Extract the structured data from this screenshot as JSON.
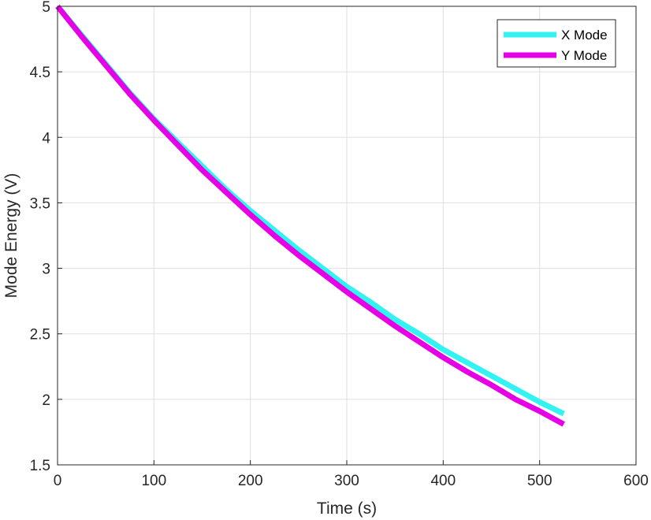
{
  "chart_data": {
    "type": "line",
    "title": "",
    "xlabel": "Time (s)",
    "ylabel": "Mode Energy (V)",
    "xlim": [
      0,
      600
    ],
    "ylim": [
      1.5,
      5
    ],
    "xticks": [
      0,
      100,
      200,
      300,
      400,
      500,
      600
    ],
    "yticks": [
      1.5,
      2,
      2.5,
      3,
      3.5,
      4,
      4.5,
      5
    ],
    "xtick_labels": [
      "0",
      "100",
      "200",
      "300",
      "400",
      "500",
      "600"
    ],
    "ytick_labels": [
      "1.5",
      "2",
      "2.5",
      "3",
      "3.5",
      "4",
      "4.5",
      "5"
    ],
    "grid": true,
    "legend_position": "top-right",
    "series": [
      {
        "name": "X Mode",
        "color": "#33F2F2",
        "x": [
          0,
          25,
          50,
          75,
          100,
          125,
          150,
          175,
          200,
          225,
          250,
          275,
          300,
          325,
          350,
          375,
          400,
          425,
          450,
          475,
          500,
          525
        ],
        "y": [
          5.0,
          4.78,
          4.56,
          4.34,
          4.14,
          3.96,
          3.78,
          3.6,
          3.44,
          3.29,
          3.14,
          3.0,
          2.86,
          2.74,
          2.61,
          2.5,
          2.38,
          2.28,
          2.18,
          2.08,
          1.98,
          1.89
        ]
      },
      {
        "name": "Y Mode",
        "color": "#E600E6",
        "x": [
          0,
          25,
          50,
          75,
          100,
          125,
          150,
          175,
          200,
          225,
          250,
          275,
          300,
          325,
          350,
          375,
          400,
          425,
          450,
          475,
          500,
          525
        ],
        "y": [
          5.0,
          4.77,
          4.55,
          4.33,
          4.13,
          3.94,
          3.75,
          3.58,
          3.41,
          3.25,
          3.1,
          2.96,
          2.82,
          2.69,
          2.56,
          2.44,
          2.32,
          2.21,
          2.11,
          2.0,
          1.91,
          1.81
        ]
      }
    ]
  }
}
